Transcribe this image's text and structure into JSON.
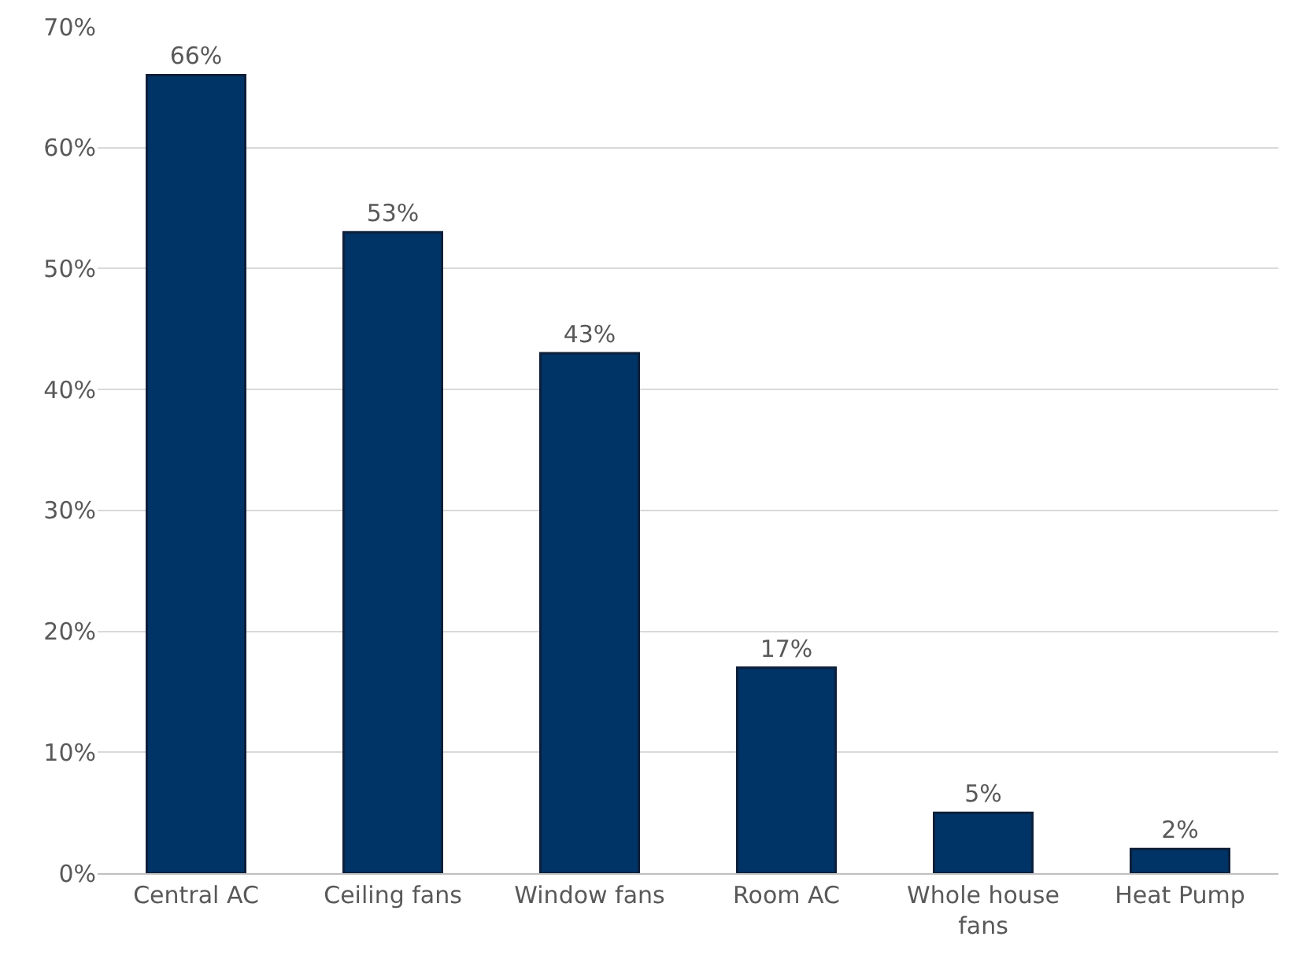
{
  "chart_data": {
    "type": "bar",
    "categories": [
      "Central AC",
      "Ceiling fans",
      "Window fans",
      "Room AC",
      "Whole house fans",
      "Heat Pump"
    ],
    "values": [
      66,
      53,
      43,
      17,
      5,
      2
    ],
    "value_labels": [
      "66%",
      "53%",
      "43%",
      "17%",
      "5%",
      "2%"
    ],
    "color": "#003366",
    "ylim": [
      0,
      70
    ],
    "yticks": [
      {
        "value": 0,
        "label": "0%"
      },
      {
        "value": 10,
        "label": "10%"
      },
      {
        "value": 20,
        "label": "20%"
      },
      {
        "value": 30,
        "label": "30%"
      },
      {
        "value": 40,
        "label": "40%"
      },
      {
        "value": 50,
        "label": "50%"
      },
      {
        "value": 60,
        "label": "60%"
      },
      {
        "value": 70,
        "label": "70%"
      }
    ],
    "grid": "y"
  }
}
